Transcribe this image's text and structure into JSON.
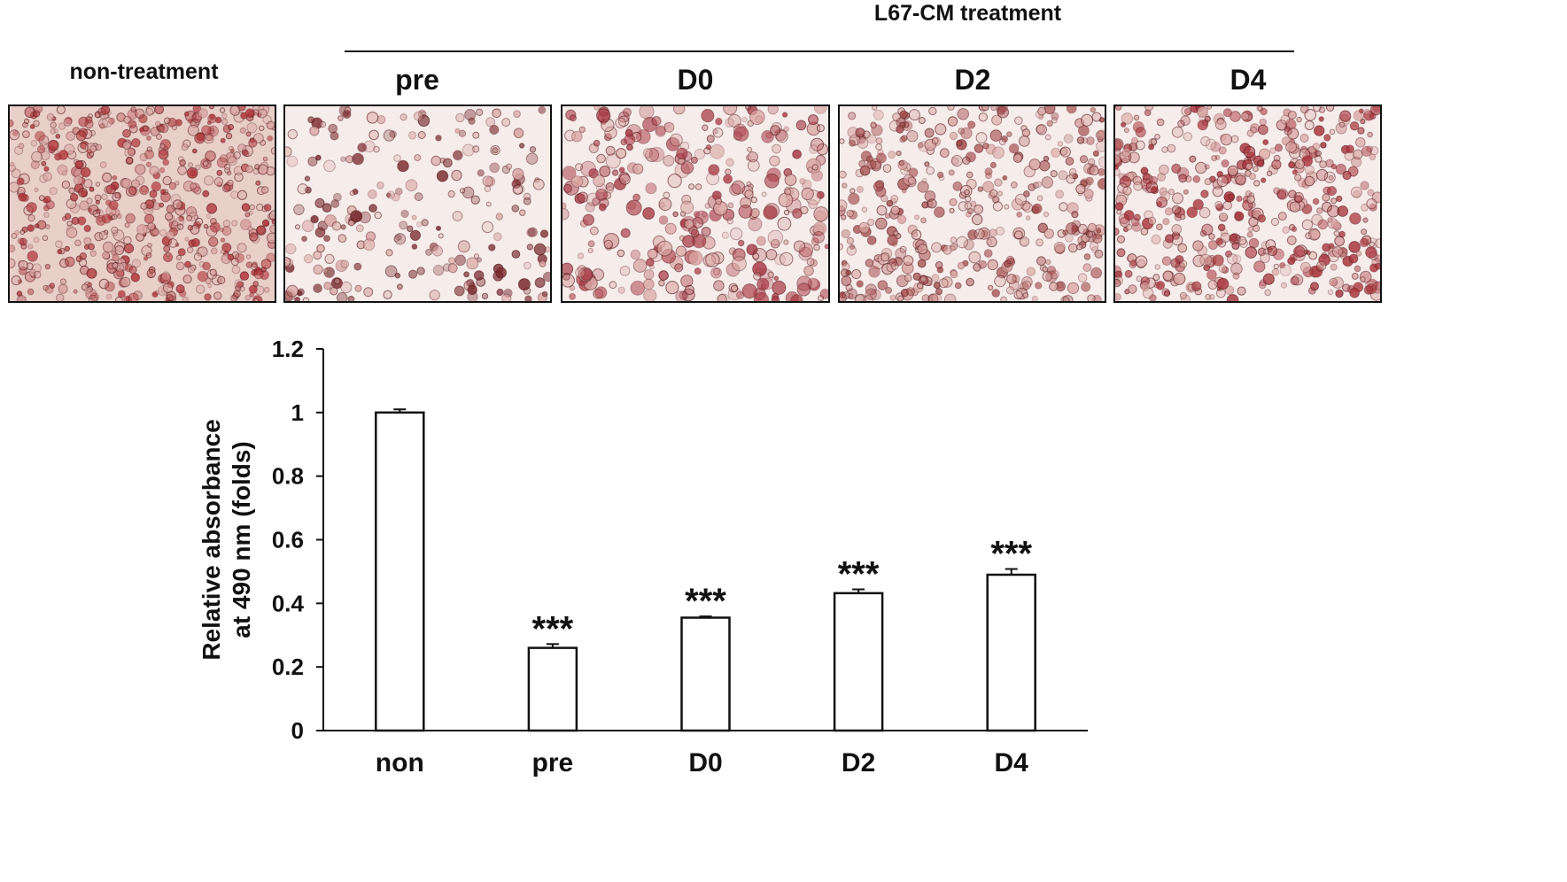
{
  "figure": {
    "group_label": "L67-CM treatment",
    "panels": [
      {
        "label": "non-treatment",
        "stain_density": 0.95,
        "tint": "#b0353b"
      },
      {
        "label": "pre",
        "stain_density": 0.22,
        "tint": "#7a2a2e"
      },
      {
        "label": "D0",
        "stain_density": 0.42,
        "tint": "#a83a45"
      },
      {
        "label": "D2",
        "stain_density": 0.62,
        "tint": "#a34a4a"
      },
      {
        "label": "D4",
        "stain_density": 0.75,
        "tint": "#a8343c"
      }
    ]
  },
  "chart_data": {
    "type": "bar",
    "categories": [
      "non",
      "pre",
      "D0",
      "D2",
      "D4"
    ],
    "values": [
      1.0,
      0.26,
      0.355,
      0.432,
      0.49
    ],
    "errors": [
      0.01,
      0.012,
      0.004,
      0.012,
      0.018
    ],
    "annotations": [
      "",
      "***",
      "***",
      "***",
      "***"
    ],
    "ylabel_lines": [
      "Relative absorbance",
      "at 490 nm (folds)"
    ],
    "xlabel": "",
    "ylim": [
      0,
      1.2
    ],
    "yticks": [
      0,
      0.2,
      0.4,
      0.6,
      0.8,
      1.0,
      1.2
    ],
    "ytick_labels": [
      "0",
      "0.2",
      "0.4",
      "0.6",
      "0.8",
      "1",
      "1.2"
    ],
    "grid": false,
    "bar_fill": "#ffffff",
    "bar_stroke": "#111111"
  }
}
